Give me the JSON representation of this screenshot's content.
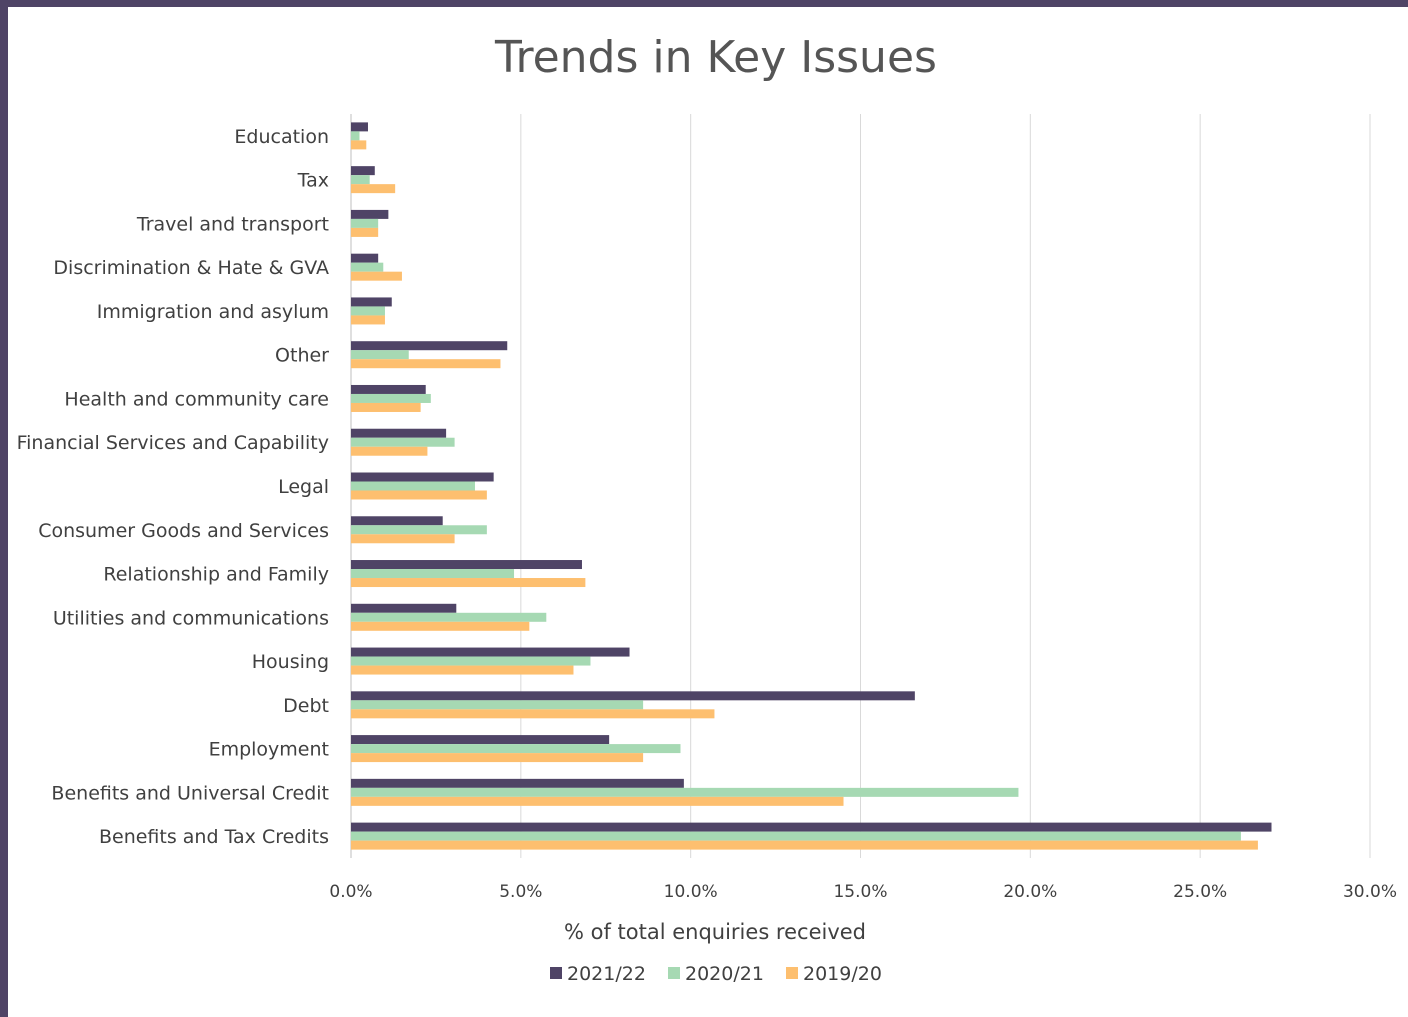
{
  "chart_data": {
    "type": "bar",
    "orientation": "horizontal",
    "title": "Trends in Key Issues",
    "xlabel": "% of total enquiries received",
    "ylabel": "",
    "xlim": [
      0,
      30
    ],
    "x_ticks": [
      "0.0%",
      "5.0%",
      "10.0%",
      "15.0%",
      "20.0%",
      "25.0%",
      "30.0%"
    ],
    "grid": "vertical",
    "legend_position": "bottom",
    "categories": [
      "Education",
      "Tax",
      "Travel and transport",
      "Discrimination & Hate & GVA",
      "Immigration and asylum",
      "Other",
      "Health and community care",
      "Financial Services and Capability",
      "Legal",
      "Consumer Goods and Services",
      "Relationship and Family",
      "Utilities and communications",
      "Housing",
      "Debt",
      "Employment",
      "Benefits and Universal Credit",
      "Benefits and Tax Credits"
    ],
    "series": [
      {
        "name": "2021/22",
        "color": "#4f4466",
        "values": [
          0.5,
          0.7,
          1.1,
          0.8,
          1.2,
          4.6,
          2.2,
          2.8,
          4.2,
          2.7,
          6.8,
          3.1,
          8.2,
          16.6,
          7.6,
          9.8,
          27.1
        ]
      },
      {
        "name": "2020/21",
        "color": "#a6d9b3",
        "values": [
          0.25,
          0.55,
          0.8,
          0.95,
          1.0,
          1.7,
          2.35,
          3.05,
          3.65,
          4.0,
          4.8,
          5.75,
          7.05,
          8.6,
          9.7,
          19.65,
          26.2
        ]
      },
      {
        "name": "2019/20",
        "color": "#fdbf6f",
        "values": [
          0.45,
          1.3,
          0.8,
          1.5,
          1.0,
          4.4,
          2.05,
          2.25,
          4.0,
          3.05,
          6.9,
          5.25,
          6.55,
          10.7,
          8.6,
          14.5,
          26.7
        ]
      }
    ]
  }
}
